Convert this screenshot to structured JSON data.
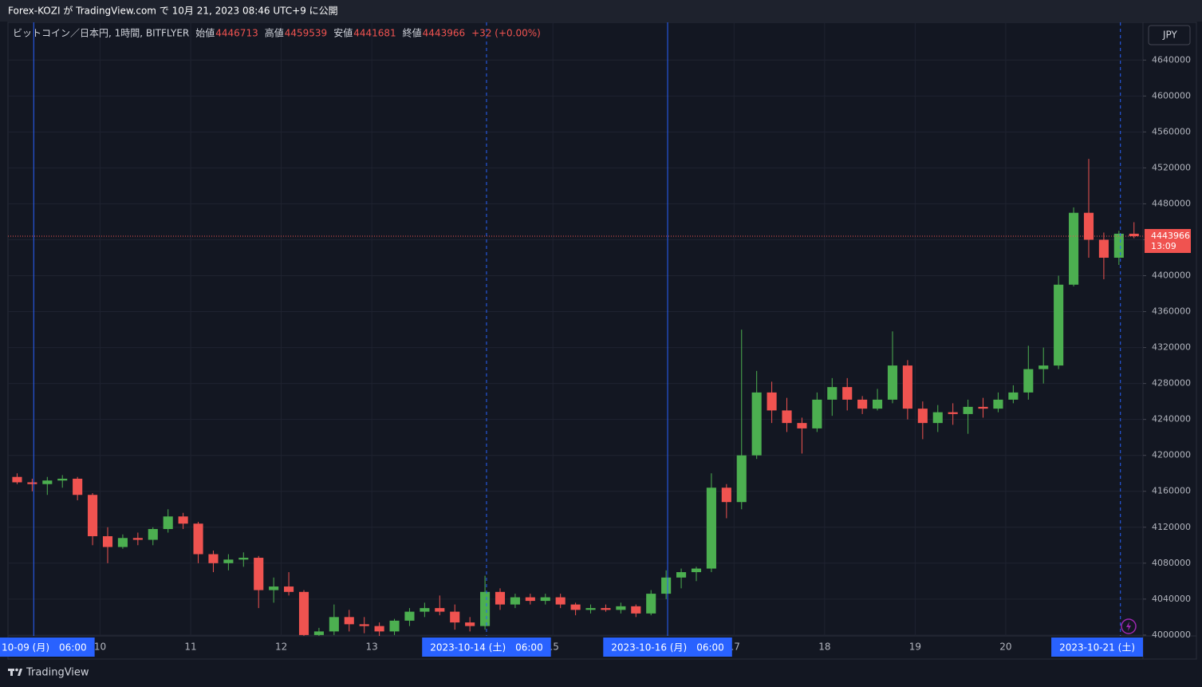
{
  "header": {
    "title": "Forex-KOZI が TradingView.com で 10月 21, 2023 08:46 UTC+9 に公開"
  },
  "chart_data": {
    "type": "candlestick",
    "symbol": "ビットコイン／日本円, 1時間, BITFLYER",
    "labels": {
      "open": "始値",
      "high": "高値",
      "low": "安値",
      "close": "終値"
    },
    "change_label": "+32 (+0.00%)",
    "currency": "JPY",
    "countdown": "13:09",
    "up_color": "#4caf50",
    "down_color": "#f05350",
    "open": [
      4176000,
      4170000,
      4168000,
      4172000,
      4174000,
      4156000,
      4110000,
      4098000,
      4108000,
      4106000,
      4118000,
      4132000,
      4124000,
      4090000,
      4080000,
      4084000,
      4086000,
      4050000,
      4054000,
      4048000,
      4000000,
      4004000,
      4020000,
      4012000,
      4010000,
      4004000,
      4016000,
      4026000,
      4030000,
      4026000,
      4014000,
      4010000,
      4048000,
      4034000,
      4042000,
      4038000,
      4042000,
      4034000,
      4028000,
      4030000,
      4028000,
      4032000,
      4024000,
      4046000,
      4064000,
      4070000,
      4074000,
      4164000,
      4148000,
      4200000,
      4270000,
      4250000,
      4236000,
      4230000,
      4262000,
      4276000,
      4262000,
      4252000,
      4262000,
      4300000,
      4252000,
      4236000,
      4248000,
      4246000,
      4254000,
      4252000,
      4262000,
      4270000,
      4296000,
      4300000,
      4390000,
      4470000,
      4440000,
      4420000,
      4446713
    ],
    "high": [
      4180000,
      4174000,
      4176000,
      4178000,
      4176000,
      4158000,
      4120000,
      4112000,
      4114000,
      4120000,
      4140000,
      4136000,
      4126000,
      4094000,
      4090000,
      4092000,
      4088000,
      4064000,
      4070000,
      4050000,
      4008000,
      4034000,
      4028000,
      4020000,
      4014000,
      4018000,
      4030000,
      4036000,
      4044000,
      4034000,
      4020000,
      4066000,
      4052000,
      4046000,
      4046000,
      4046000,
      4046000,
      4036000,
      4034000,
      4034000,
      4036000,
      4034000,
      4050000,
      4072000,
      4074000,
      4076000,
      4180000,
      4168000,
      4340000,
      4294000,
      4282000,
      4264000,
      4242000,
      4270000,
      4286000,
      4286000,
      4266000,
      4274000,
      4338000,
      4306000,
      4260000,
      4256000,
      4258000,
      4262000,
      4264000,
      4270000,
      4278000,
      4322000,
      4320000,
      4400000,
      4476000,
      4530000,
      4448000,
      4450000,
      4459539
    ],
    "low": [
      4168000,
      4160000,
      4156000,
      4164000,
      4150000,
      4100000,
      4080000,
      4096000,
      4100000,
      4100000,
      4114000,
      4118000,
      4080000,
      4070000,
      4072000,
      4076000,
      4030000,
      4036000,
      4044000,
      3990000,
      3994000,
      4000000,
      4004000,
      4002000,
      3998000,
      4000000,
      4010000,
      4020000,
      4022000,
      4006000,
      4004000,
      4006000,
      4028000,
      4030000,
      4034000,
      4034000,
      4030000,
      4022000,
      4024000,
      4026000,
      4024000,
      4020000,
      4022000,
      4040000,
      4052000,
      4060000,
      4070000,
      4130000,
      4140000,
      4196000,
      4236000,
      4226000,
      4202000,
      4226000,
      4244000,
      4250000,
      4246000,
      4250000,
      4258000,
      4240000,
      4218000,
      4226000,
      4234000,
      4224000,
      4242000,
      4248000,
      4258000,
      4262000,
      4280000,
      4296000,
      4388000,
      4420000,
      4396000,
      4412000,
      4441681
    ],
    "close": [
      4170000,
      4168000,
      4172000,
      4174000,
      4156000,
      4110000,
      4098000,
      4108000,
      4106000,
      4118000,
      4132000,
      4124000,
      4090000,
      4080000,
      4084000,
      4086000,
      4050000,
      4054000,
      4048000,
      4000000,
      4004000,
      4020000,
      4012000,
      4010000,
      4004000,
      4016000,
      4026000,
      4030000,
      4026000,
      4014000,
      4010000,
      4048000,
      4034000,
      4042000,
      4038000,
      4042000,
      4034000,
      4028000,
      4030000,
      4028000,
      4032000,
      4024000,
      4046000,
      4064000,
      4070000,
      4074000,
      4164000,
      4148000,
      4200000,
      4270000,
      4250000,
      4236000,
      4230000,
      4262000,
      4276000,
      4262000,
      4252000,
      4262000,
      4300000,
      4252000,
      4236000,
      4248000,
      4246000,
      4254000,
      4252000,
      4262000,
      4270000,
      4296000,
      4300000,
      4390000,
      4470000,
      4440000,
      4420000,
      4446713,
      4443966
    ],
    "ylim": [
      3999000,
      4682000
    ],
    "yticks": [
      4000000,
      4040000,
      4080000,
      4120000,
      4160000,
      4200000,
      4240000,
      4280000,
      4320000,
      4360000,
      4400000,
      4440000,
      4480000,
      4520000,
      4560000,
      4600000,
      4640000
    ],
    "xlim": [
      0,
      75.2
    ],
    "xticks": [
      {
        "value": 6,
        "label": "10"
      },
      {
        "value": 12,
        "label": "11"
      },
      {
        "value": 18,
        "label": "12"
      },
      {
        "value": 24,
        "label": "13"
      },
      {
        "value": 36,
        "label": "15"
      },
      {
        "value": 48,
        "label": "17"
      },
      {
        "value": 54,
        "label": "18"
      },
      {
        "value": 60,
        "label": "19"
      },
      {
        "value": 66,
        "label": "20"
      }
    ],
    "markers": [
      {
        "value": 1.6,
        "label": "10-09 (月)　06:00",
        "style": "solid"
      },
      {
        "value": 31.6,
        "label": "2023-10-14 (土)　06:00",
        "style": "dashed"
      },
      {
        "value": 43.6,
        "label": "2023-10-16 (月)　06:00",
        "style": "solid"
      },
      {
        "value": 73.6,
        "label": "2023-10-21 (土)",
        "style": "dashed"
      }
    ],
    "grid": true
  },
  "footer": {
    "brand": "TradingView"
  }
}
